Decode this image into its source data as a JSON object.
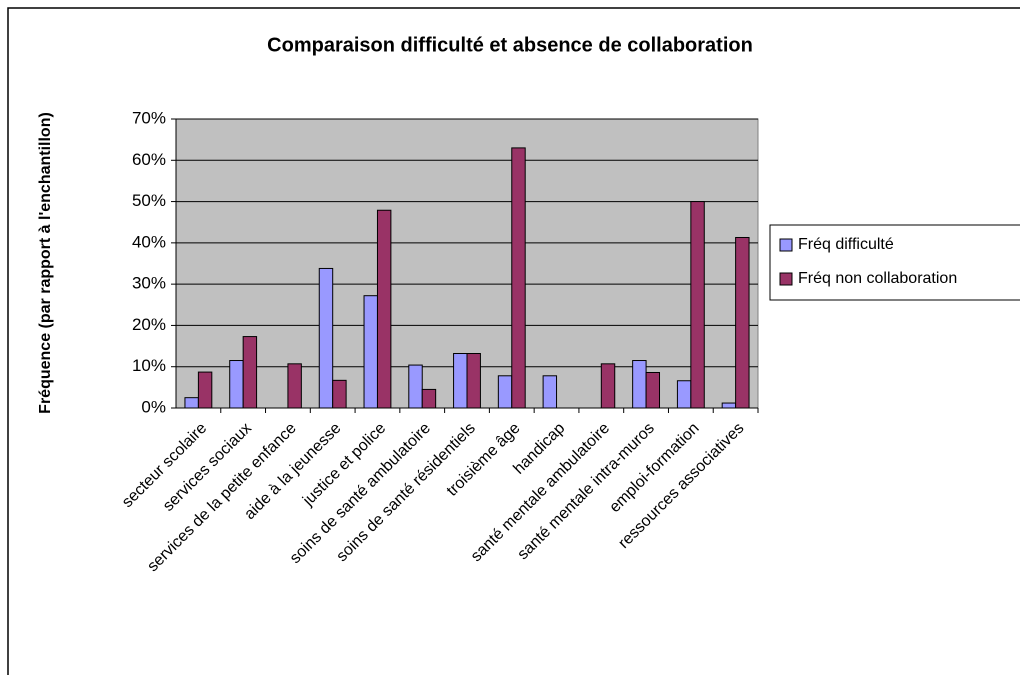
{
  "chart_data": {
    "type": "bar",
    "title": "Comparaison difficulté et absence de collaboration",
    "y_label": "Fréquence (par rapport à l'enchantillon)",
    "categories": [
      "secteur scolaire",
      "services sociaux",
      "services de la petite enfance",
      "aide à la jeunesse",
      "justice et police",
      "soins de santé ambulatoire",
      "soins de santé résidentiels",
      "troisième âge",
      "handicap",
      "santé mentale ambulatoire",
      "santé mentale intra-muros",
      "emploi-formation",
      "ressources associatives"
    ],
    "series": [
      {
        "name": "Fréq difficulté",
        "color": "#9999ff",
        "values": [
          2.5,
          11.5,
          0,
          33.8,
          27.2,
          10.4,
          13.2,
          7.8,
          7.8,
          0,
          11.5,
          6.6,
          1.2
        ]
      },
      {
        "name": "Fréq non collaboration",
        "color": "#993366",
        "values": [
          8.7,
          17.3,
          10.7,
          6.7,
          47.9,
          4.5,
          13.2,
          63,
          0,
          10.7,
          8.6,
          50,
          41.3
        ]
      }
    ],
    "ylim": [
      0,
      70
    ],
    "yticks": [
      {
        "value": 0,
        "label": "0%"
      },
      {
        "value": 10,
        "label": "10%"
      },
      {
        "value": 20,
        "label": "20%"
      },
      {
        "value": 30,
        "label": "30%"
      },
      {
        "value": 40,
        "label": "40%"
      },
      {
        "value": 50,
        "label": "50%"
      },
      {
        "value": 60,
        "label": "60%"
      },
      {
        "value": 70,
        "label": "70%"
      }
    ],
    "grid": true,
    "legend": "right"
  }
}
